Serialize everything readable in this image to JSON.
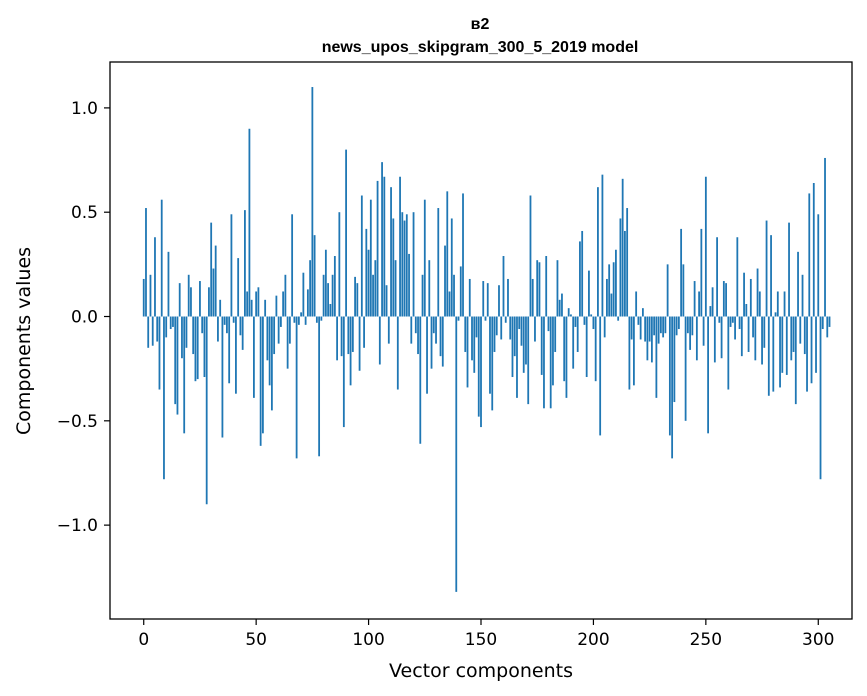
{
  "chart_data": {
    "type": "bar",
    "title_lines": [
      "в2",
      "news_upos_skipgram_300_5_2019 model"
    ],
    "xlabel": "Vector components",
    "ylabel": "Components values",
    "xlim": [
      -15,
      315
    ],
    "ylim": [
      -1.45,
      1.22
    ],
    "x_ticks": [
      0,
      50,
      100,
      150,
      200,
      250,
      300
    ],
    "x_tick_labels": [
      "0",
      "50",
      "100",
      "150",
      "200",
      "250",
      "300"
    ],
    "y_ticks": [
      -1.0,
      -0.5,
      0.0,
      0.5,
      1.0
    ],
    "y_tick_labels": [
      "−1.0",
      "−0.5",
      "0.0",
      "0.5",
      "1.0"
    ],
    "bar_color": "#1f77b4",
    "bar_width": 0.8,
    "grid": false,
    "values": [
      0.18,
      0.52,
      -0.15,
      0.2,
      -0.14,
      0.38,
      -0.12,
      -0.35,
      0.56,
      -0.78,
      -0.1,
      0.31,
      -0.06,
      -0.05,
      -0.42,
      -0.47,
      0.16,
      -0.2,
      -0.56,
      -0.15,
      0.2,
      0.14,
      -0.18,
      -0.31,
      -0.3,
      0.17,
      -0.08,
      -0.29,
      -0.9,
      0.14,
      0.45,
      0.23,
      0.34,
      -0.12,
      0.08,
      -0.58,
      -0.04,
      -0.08,
      -0.32,
      0.49,
      -0.03,
      -0.37,
      0.28,
      -0.09,
      -0.16,
      0.51,
      0.12,
      0.9,
      0.08,
      -0.39,
      0.12,
      0.14,
      -0.62,
      -0.56,
      0.08,
      -0.21,
      -0.33,
      -0.45,
      -0.18,
      0.1,
      -0.13,
      -0.05,
      0.12,
      0.2,
      -0.25,
      -0.13,
      0.49,
      -0.03,
      -0.68,
      -0.04,
      0.02,
      0.21,
      -0.04,
      0.13,
      0.27,
      1.1,
      0.39,
      -0.03,
      -0.67,
      -0.02,
      0.2,
      0.32,
      0.16,
      0.06,
      0.2,
      0.29,
      -0.21,
      0.5,
      -0.19,
      -0.53,
      0.8,
      -0.18,
      -0.33,
      -0.17,
      0.19,
      0.16,
      -0.26,
      0.58,
      -0.15,
      0.42,
      0.32,
      0.56,
      0.2,
      0.27,
      0.65,
      -0.23,
      0.74,
      0.67,
      0.15,
      -0.13,
      0.62,
      0.47,
      0.27,
      -0.35,
      0.67,
      0.5,
      0.46,
      0.49,
      0.3,
      -0.13,
      0.5,
      -0.08,
      -0.18,
      -0.61,
      0.2,
      0.56,
      -0.37,
      0.27,
      -0.25,
      -0.08,
      -0.13,
      0.52,
      -0.19,
      -0.24,
      0.34,
      0.6,
      0.12,
      0.47,
      0.2,
      -1.32,
      -0.02,
      0.24,
      0.59,
      -0.17,
      -0.34,
      0.18,
      -0.21,
      -0.27,
      -0.1,
      -0.48,
      -0.53,
      0.17,
      -0.02,
      0.16,
      -0.37,
      -0.45,
      -0.17,
      -0.09,
      0.15,
      -0.11,
      0.29,
      -0.03,
      0.18,
      -0.11,
      -0.29,
      -0.19,
      -0.39,
      -0.06,
      -0.14,
      -0.27,
      -0.23,
      -0.42,
      0.58,
      0.18,
      -0.12,
      0.27,
      0.26,
      -0.28,
      -0.44,
      0.29,
      -0.07,
      -0.44,
      -0.33,
      -0.17,
      0.27,
      0.08,
      0.11,
      -0.31,
      -0.39,
      0.04,
      0.01,
      -0.25,
      -0.05,
      -0.17,
      0.36,
      0.41,
      -0.04,
      -0.29,
      0.22,
      0.01,
      -0.06,
      -0.31,
      0.62,
      -0.57,
      0.68,
      -0.1,
      0.18,
      0.25,
      0.11,
      0.26,
      0.32,
      -0.02,
      0.47,
      0.66,
      0.41,
      0.52,
      -0.35,
      -0.11,
      -0.33,
      0.12,
      -0.04,
      -0.11,
      0.04,
      -0.12,
      -0.21,
      -0.12,
      -0.22,
      -0.09,
      -0.39,
      -0.13,
      -0.08,
      -0.1,
      -0.08,
      0.25,
      -0.57,
      -0.68,
      -0.41,
      -0.09,
      -0.06,
      0.42,
      0.25,
      -0.5,
      -0.08,
      -0.16,
      -0.09,
      0.17,
      -0.21,
      0.12,
      0.42,
      -0.14,
      0.67,
      -0.56,
      0.05,
      0.14,
      -0.22,
      0.38,
      -0.03,
      -0.2,
      0.17,
      0.16,
      -0.35,
      -0.05,
      -0.03,
      -0.11,
      0.38,
      -0.06,
      -0.19,
      0.21,
      0.06,
      -0.17,
      0.18,
      -0.1,
      -0.21,
      0.23,
      0.12,
      -0.23,
      -0.15,
      0.46,
      -0.38,
      0.39,
      -0.36,
      0.02,
      0.12,
      -0.34,
      -0.27,
      0.12,
      -0.28,
      0.45,
      -0.21,
      -0.17,
      -0.42,
      0.31,
      -0.13,
      0.2,
      -0.18,
      -0.36,
      0.59,
      -0.32,
      0.64,
      -0.27,
      0.49,
      -0.78,
      -0.06,
      0.76,
      -0.1,
      -0.05
    ]
  }
}
